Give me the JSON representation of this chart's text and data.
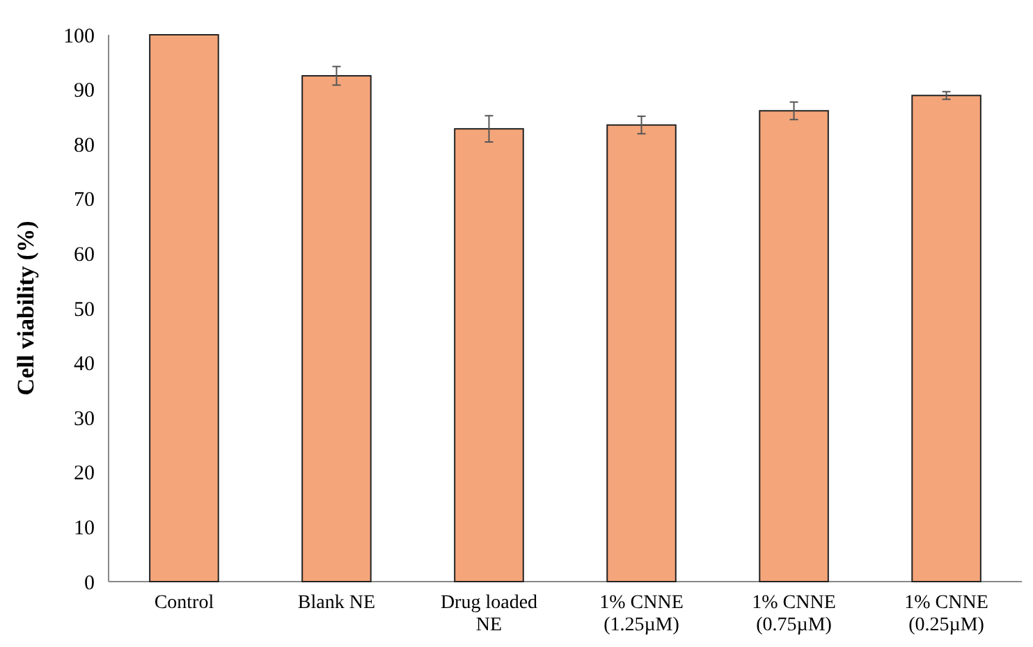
{
  "chart_data": {
    "type": "bar",
    "ylabel": "Cell viability (%)",
    "categories": [
      "Control",
      "Blank NE",
      "Drug loaded NE",
      "1% CNNE (1.25µM)",
      "1% CNNE (0.75µM)",
      "1% CNNE (0.25µM)"
    ],
    "values": [
      100,
      92.5,
      82.8,
      83.5,
      86.1,
      88.9
    ],
    "errors": [
      null,
      1.7,
      2.4,
      1.6,
      1.6,
      0.7
    ],
    "color": "#f4a57a",
    "ylim": [
      0,
      100
    ],
    "yticks": [
      0,
      10,
      20,
      30,
      40,
      50,
      60,
      70,
      80,
      90,
      100
    ],
    "grid": false
  }
}
